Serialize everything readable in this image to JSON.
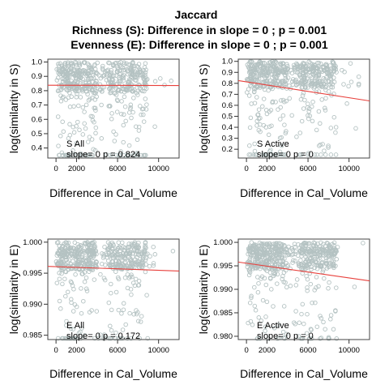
{
  "figure": {
    "title": "Jaccard",
    "subtitle1": "Richness (S): Difference in slope = 0 ; p = 0.001",
    "subtitle2": "Evenness (E): Difference in slope = 0 ; p = 0.001"
  },
  "colors": {
    "points": "#b4c2c2",
    "line": "#e8403c"
  },
  "chart_data": [
    {
      "type": "scatter",
      "title": "",
      "xlabel": "Difference in  Cal_Volume",
      "ylabel": "log(similarity in S)",
      "xlim": [
        -800,
        12000
      ],
      "ylim": [
        0.33,
        1.02
      ],
      "xticks": [
        0,
        2000,
        6000,
        10000
      ],
      "yticks": [
        0.4,
        0.5,
        0.6,
        0.7,
        0.8,
        0.9,
        1.0
      ],
      "ytick_labels": [
        "0.4",
        "0.5",
        "0.6",
        "0.7",
        "0.8",
        "0.9",
        "1.0"
      ],
      "annotation_line1": "S All",
      "annotation_line2": "slope= 0  p =  0.824",
      "fit_line": {
        "x": [
          -800,
          12000
        ],
        "y": [
          0.838,
          0.836
        ]
      },
      "points_description_free": true,
      "scatter_model": {
        "seed": 11,
        "n": 620,
        "ymin": 0.35,
        "ymax": 1.0,
        "mean": 0.84,
        "spread": 0.17,
        "tail": 0.5
      }
    },
    {
      "type": "scatter",
      "title": "",
      "xlabel": "Difference in  Cal_Volume",
      "ylabel": "log(similarity in S)",
      "xlim": [
        -800,
        12000
      ],
      "ylim": [
        0.12,
        1.02
      ],
      "xticks": [
        0,
        2000,
        6000,
        10000
      ],
      "yticks": [
        0.2,
        0.3,
        0.4,
        0.5,
        0.6,
        0.7,
        0.8,
        0.9,
        1.0
      ],
      "ytick_labels": [
        "0.2",
        "0.3",
        "0.4",
        "0.5",
        "0.6",
        "0.7",
        "0.8",
        "0.9",
        "1.0"
      ],
      "annotation_line1": "S Active",
      "annotation_line2": "slope= 0  p =  0",
      "fit_line": {
        "x": [
          -800,
          12000
        ],
        "y": [
          0.825,
          0.64
        ]
      },
      "scatter_model": {
        "seed": 23,
        "n": 620,
        "ymin": 0.15,
        "ymax": 1.0,
        "mean": 0.82,
        "spread": 0.22,
        "tail": 0.45
      }
    },
    {
      "type": "scatter",
      "title": "",
      "xlabel": "Difference in  Cal_Volume",
      "ylabel": "log(similarity in E)",
      "xlim": [
        -800,
        12000
      ],
      "ylim": [
        0.9843,
        1.0005
      ],
      "xticks": [
        0,
        2000,
        6000,
        10000
      ],
      "yticks": [
        0.985,
        0.99,
        0.995,
        1.0
      ],
      "ytick_labels": [
        "0.985",
        "0.990",
        "0.995",
        "1.000"
      ],
      "annotation_line1": "E All",
      "annotation_line2": "slope= 0  p =  0.172",
      "fit_line": {
        "x": [
          -800,
          12000
        ],
        "y": [
          0.9961,
          0.99535
        ]
      },
      "scatter_model": {
        "seed": 37,
        "n": 620,
        "ymin": 0.9845,
        "ymax": 1.0,
        "mean": 0.9965,
        "spread": 0.0035,
        "tail": 0.5
      }
    },
    {
      "type": "scatter",
      "title": "",
      "xlabel": "Difference in  Cal_Volume",
      "ylabel": "log(similarity in E)",
      "xlim": [
        -800,
        12000
      ],
      "ylim": [
        0.9793,
        1.0007
      ],
      "xticks": [
        0,
        2000,
        6000,
        10000
      ],
      "yticks": [
        0.98,
        0.985,
        0.99,
        0.995,
        1.0
      ],
      "ytick_labels": [
        "0.980",
        "0.985",
        "0.990",
        "0.995",
        "1.000"
      ],
      "annotation_line1": "E Active",
      "annotation_line2": "slope= 0  p =  0",
      "fit_line": {
        "x": [
          -800,
          12000
        ],
        "y": [
          0.9958,
          0.9918
        ]
      },
      "scatter_model": {
        "seed": 53,
        "n": 620,
        "ymin": 0.9795,
        "ymax": 1.0,
        "mean": 0.9955,
        "spread": 0.005,
        "tail": 0.45
      }
    }
  ]
}
